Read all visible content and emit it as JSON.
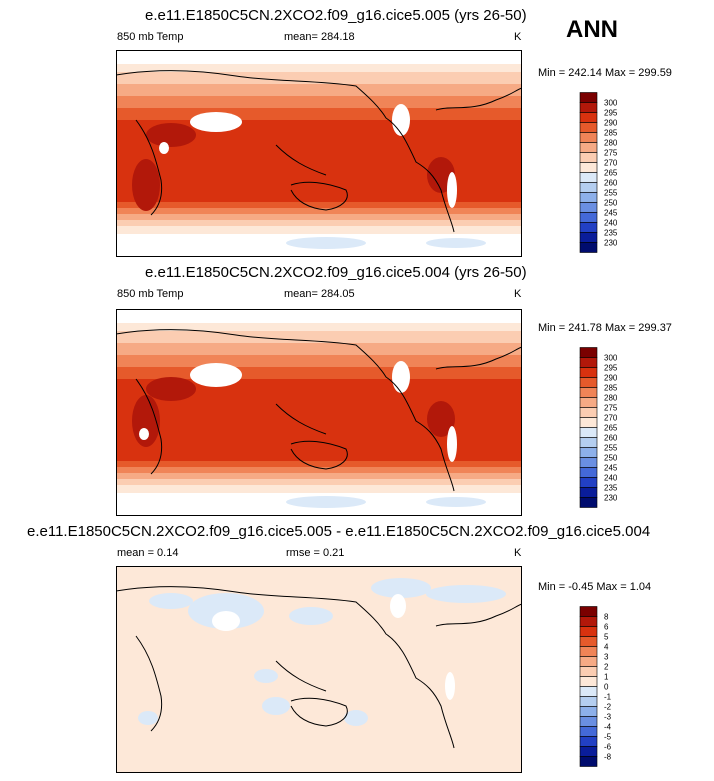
{
  "season": "ANN",
  "panels": [
    {
      "title": "e.e11.E1850C5CN.2XCO2.f09_g16.cice5.005 (yrs 26-50)",
      "left_label": "850 mb Temp",
      "mean_label": "mean= 284.18",
      "units": "K",
      "minmax": "Min = 242.14 Max = 299.59",
      "colorbar": {
        "labels": [
          "300",
          "295",
          "290",
          "285",
          "280",
          "275",
          "270",
          "265",
          "260",
          "255",
          "250",
          "245",
          "240",
          "235",
          "230"
        ],
        "colors": [
          "#7a0000",
          "#b2180a",
          "#d8320f",
          "#e65a2b",
          "#f08457",
          "#f6aa85",
          "#fbcdb2",
          "#fde8d8",
          "#dbe9f8",
          "#b4cef0",
          "#8db0ea",
          "#6a8fe2",
          "#4469d8",
          "#2240c4",
          "#0a1d9a",
          "#000c6e"
        ]
      }
    },
    {
      "title": "e.e11.E1850C5CN.2XCO2.f09_g16.cice5.004 (yrs 26-50)",
      "left_label": "850 mb Temp",
      "mean_label": "mean= 284.05",
      "units": "K",
      "minmax": "Min = 241.78 Max = 299.37",
      "colorbar": {
        "labels": [
          "300",
          "295",
          "290",
          "285",
          "280",
          "275",
          "270",
          "265",
          "260",
          "255",
          "250",
          "245",
          "240",
          "235",
          "230"
        ],
        "colors": [
          "#7a0000",
          "#b2180a",
          "#d8320f",
          "#e65a2b",
          "#f08457",
          "#f6aa85",
          "#fbcdb2",
          "#fde8d8",
          "#dbe9f8",
          "#b4cef0",
          "#8db0ea",
          "#6a8fe2",
          "#4469d8",
          "#2240c4",
          "#0a1d9a",
          "#000c6e"
        ]
      }
    },
    {
      "title": "e.e11.E1850C5CN.2XCO2.f09_g16.cice5.005 - e.e11.E1850C5CN.2XCO2.f09_g16.cice5.004",
      "left_label": "mean =   0.14",
      "mean_label": "rmse =   0.21",
      "units": "K",
      "minmax": "Min =  -0.45 Max =    1.04",
      "colorbar": {
        "labels": [
          "8",
          "6",
          "5",
          "4",
          "3",
          "2",
          "1",
          "0",
          "-1",
          "-2",
          "-3",
          "-4",
          "-5",
          "-6",
          "-8"
        ],
        "colors": [
          "#7a0000",
          "#b2180a",
          "#d8320f",
          "#e65a2b",
          "#f08457",
          "#f6aa85",
          "#fbcdb2",
          "#fde8d8",
          "#dbe9f8",
          "#b4cef0",
          "#8db0ea",
          "#6a8fe2",
          "#4469d8",
          "#2240c4",
          "#0a1d9a",
          "#000c6e"
        ]
      }
    }
  ]
}
